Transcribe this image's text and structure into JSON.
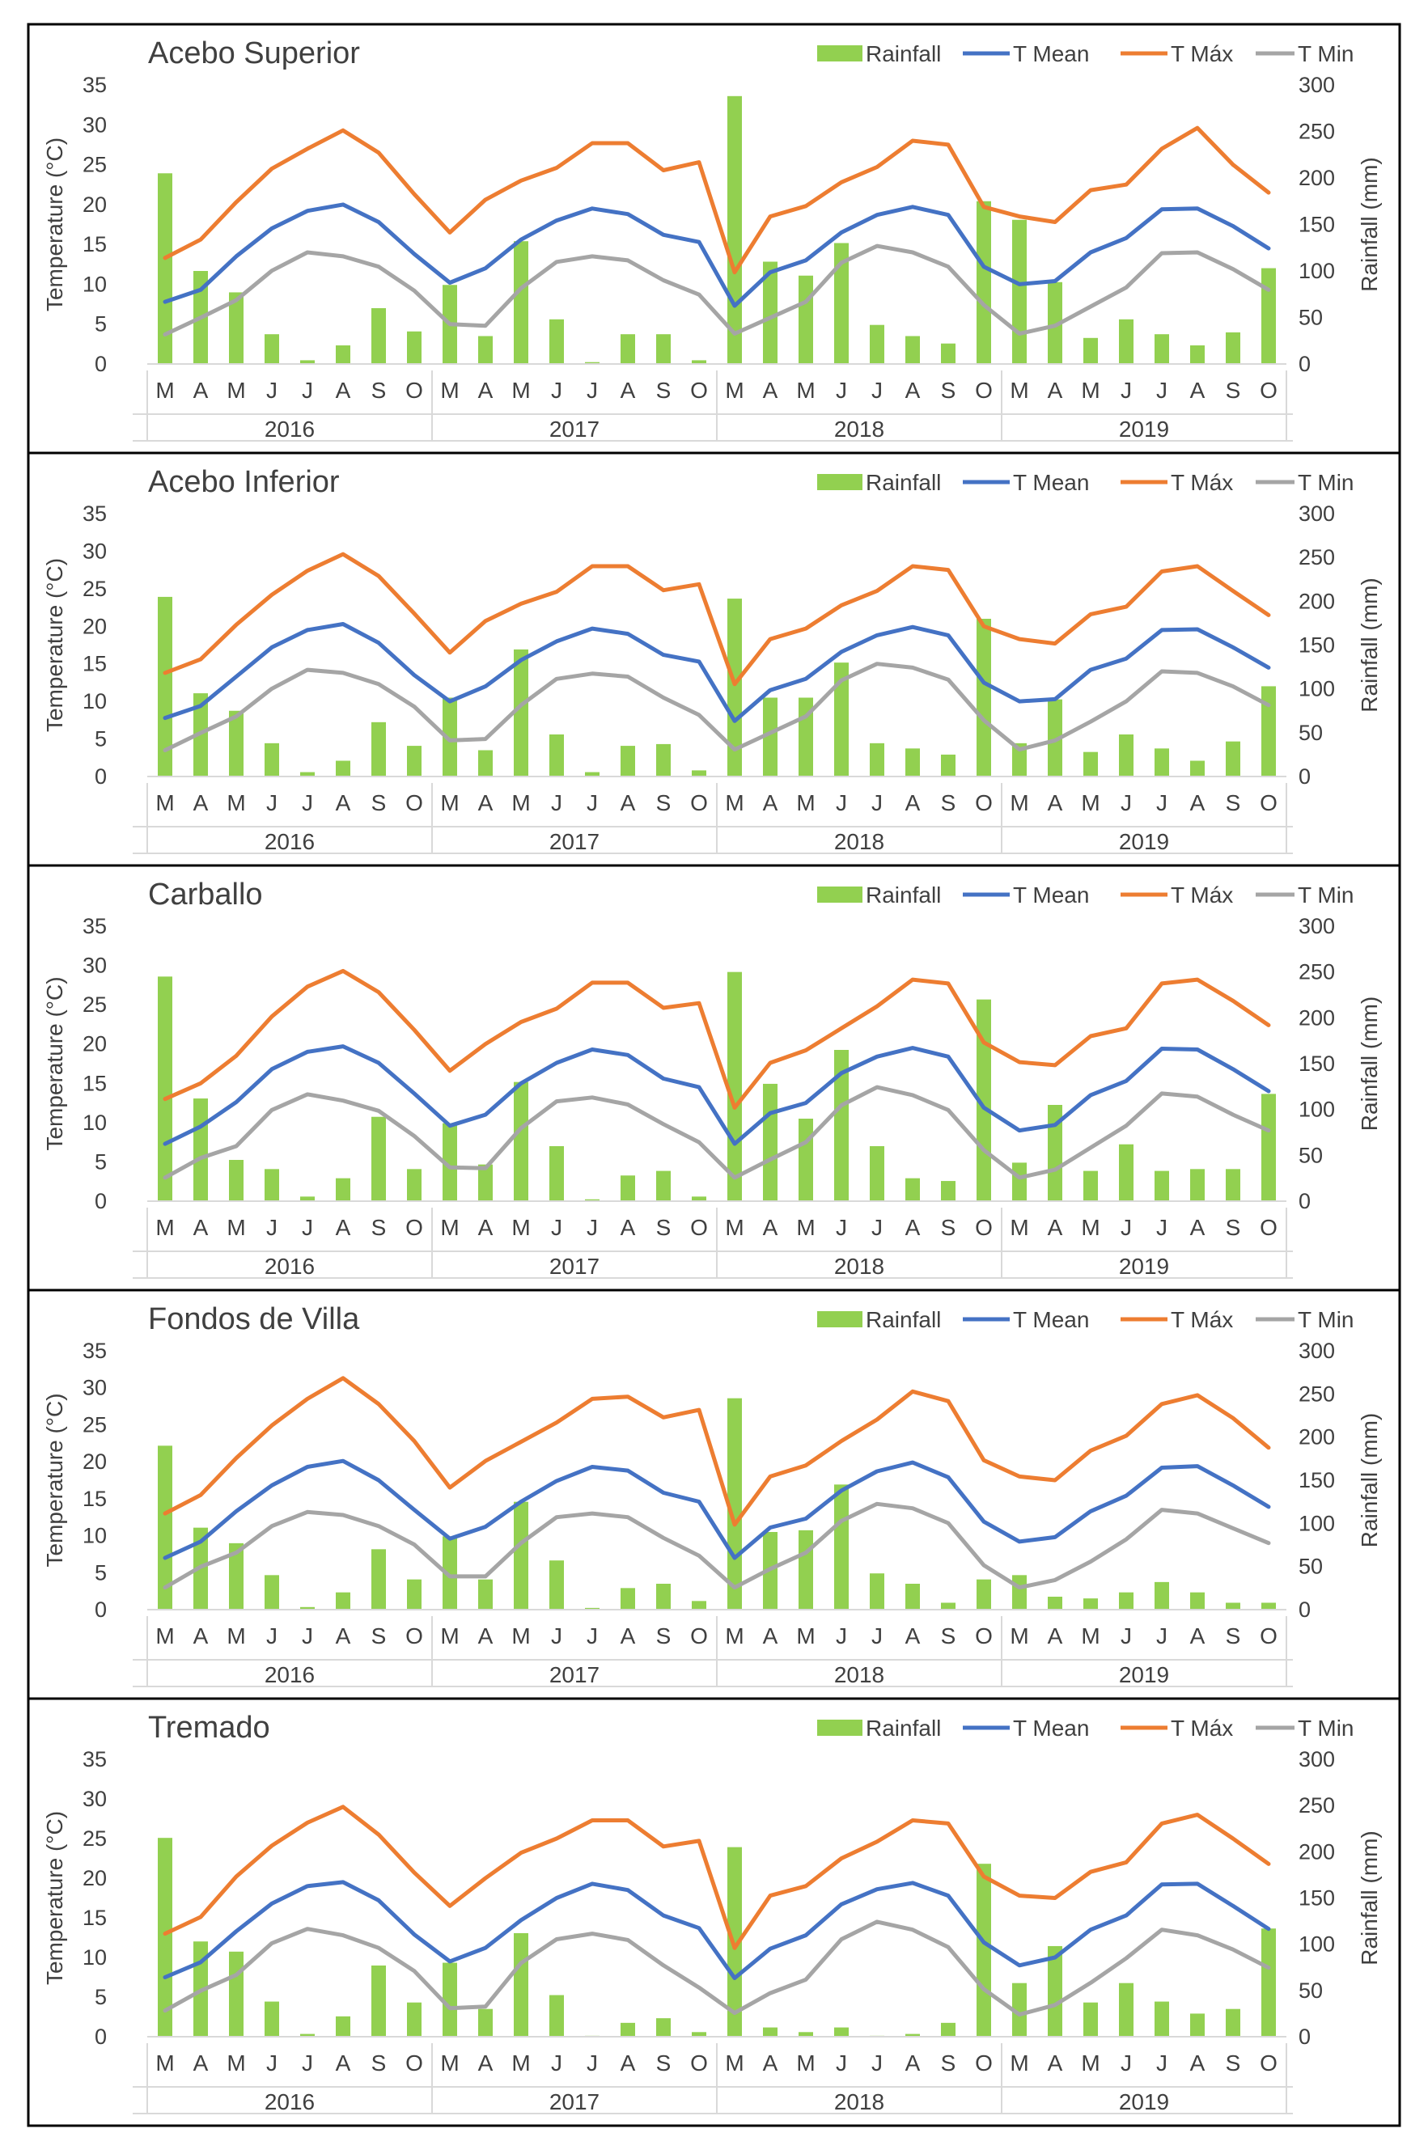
{
  "colors": {
    "rainfall": "#92D050",
    "t_mean": "#4472C4",
    "t_max": "#ED7D31",
    "t_min": "#A5A5A5",
    "frame": "#000000",
    "text": "#404040",
    "divider": "#D9D9D9"
  },
  "legend_labels": [
    "Rainfall",
    "T Mean",
    "T Máx",
    "T Min"
  ],
  "chart_data": [
    {
      "type": "bar-line",
      "title": "Acebo Superior",
      "ylabel": "Temperature (°C)",
      "y2label": "Rainfall (mm)",
      "ylim": [
        0,
        35
      ],
      "y2lim": [
        0,
        300
      ],
      "yticks": [
        "0",
        "5",
        "10",
        "15",
        "20",
        "25",
        "30",
        "35"
      ],
      "y2ticks": [
        "0",
        "50",
        "100",
        "150",
        "200",
        "250",
        "300"
      ],
      "legend": "top-right",
      "grid": false,
      "categories": [
        "M",
        "A",
        "M",
        "J",
        "J",
        "A",
        "S",
        "O",
        "M",
        "A",
        "M",
        "J",
        "J",
        "A",
        "S",
        "O",
        "M",
        "A",
        "M",
        "J",
        "J",
        "A",
        "S",
        "O",
        "M",
        "A",
        "M",
        "J",
        "J",
        "A",
        "S",
        "O"
      ],
      "years": [
        "2016",
        "2017",
        "2018",
        "2019"
      ],
      "series": [
        {
          "name": "Rainfall",
          "kind": "bar",
          "axis": "right",
          "values": [
            205,
            100,
            77,
            32,
            4,
            20,
            60,
            35,
            85,
            30,
            132,
            48,
            2,
            32,
            32,
            4,
            288,
            110,
            95,
            130,
            42,
            30,
            22,
            175,
            155,
            88,
            28,
            48,
            32,
            20,
            34,
            103
          ]
        },
        {
          "name": "T Mean",
          "kind": "line",
          "axis": "left",
          "values": [
            7.8,
            9.3,
            13.5,
            17.0,
            19.2,
            20.0,
            17.8,
            13.8,
            10.2,
            12.0,
            15.6,
            18.0,
            19.5,
            18.8,
            16.2,
            15.3,
            7.3,
            11.5,
            13.0,
            16.5,
            18.7,
            19.7,
            18.7,
            12.2,
            10.0,
            10.4,
            14.0,
            15.8,
            19.4,
            19.5,
            17.3,
            14.5
          ]
        },
        {
          "name": "T Máx",
          "kind": "line",
          "axis": "left",
          "values": [
            13.3,
            15.6,
            20.3,
            24.5,
            27.0,
            29.3,
            26.5,
            21.3,
            16.5,
            20.6,
            23.0,
            24.6,
            27.7,
            27.7,
            24.3,
            25.3,
            11.5,
            18.5,
            19.8,
            22.8,
            24.7,
            28.0,
            27.5,
            19.7,
            18.5,
            17.8,
            21.8,
            22.5,
            27.0,
            29.6,
            25.0,
            21.5
          ]
        },
        {
          "name": "T Min",
          "kind": "line",
          "axis": "left",
          "values": [
            3.7,
            5.8,
            8.0,
            11.7,
            14.0,
            13.5,
            12.2,
            9.2,
            5.0,
            4.8,
            9.5,
            12.8,
            13.5,
            13.0,
            10.5,
            8.7,
            3.8,
            5.8,
            7.8,
            12.7,
            14.8,
            14.0,
            12.2,
            7.4,
            3.8,
            4.8,
            7.2,
            9.6,
            13.9,
            14.0,
            11.9,
            9.3
          ]
        }
      ]
    },
    {
      "type": "bar-line",
      "title": "Acebo Inferior",
      "ylabel": "Temperature (°C)",
      "y2label": "Rainfall (mm)",
      "ylim": [
        0,
        35
      ],
      "y2lim": [
        0,
        300
      ],
      "yticks": [
        "0",
        "5",
        "10",
        "15",
        "20",
        "25",
        "30",
        "35"
      ],
      "y2ticks": [
        "0",
        "50",
        "100",
        "150",
        "200",
        "250",
        "300"
      ],
      "legend": "top-right",
      "grid": false,
      "categories": [
        "M",
        "A",
        "M",
        "J",
        "J",
        "A",
        "S",
        "O",
        "M",
        "A",
        "M",
        "J",
        "J",
        "A",
        "S",
        "O",
        "M",
        "A",
        "M",
        "J",
        "J",
        "A",
        "S",
        "O",
        "M",
        "A",
        "M",
        "J",
        "J",
        "A",
        "S",
        "O"
      ],
      "years": [
        "2016",
        "2017",
        "2018",
        "2019"
      ],
      "series": [
        {
          "name": "Rainfall",
          "kind": "bar",
          "axis": "right",
          "values": [
            205,
            95,
            75,
            38,
            5,
            18,
            62,
            35,
            90,
            30,
            145,
            48,
            5,
            35,
            37,
            7,
            203,
            90,
            90,
            130,
            38,
            32,
            25,
            180,
            38,
            88,
            28,
            48,
            32,
            18,
            40,
            103
          ]
        },
        {
          "name": "T Mean",
          "kind": "line",
          "axis": "left",
          "values": [
            7.8,
            9.4,
            13.3,
            17.2,
            19.5,
            20.3,
            17.8,
            13.5,
            10.0,
            12.0,
            15.5,
            18.0,
            19.7,
            19.0,
            16.2,
            15.3,
            7.4,
            11.5,
            13.0,
            16.6,
            18.8,
            19.9,
            18.8,
            12.5,
            10.0,
            10.3,
            14.2,
            15.7,
            19.5,
            19.6,
            17.2,
            14.5
          ]
        },
        {
          "name": "T Máx",
          "kind": "line",
          "axis": "left",
          "values": [
            13.8,
            15.6,
            20.2,
            24.2,
            27.4,
            29.6,
            26.7,
            21.7,
            16.5,
            20.7,
            23.0,
            24.6,
            28.0,
            28.0,
            24.8,
            25.6,
            12.3,
            18.3,
            19.7,
            22.8,
            24.7,
            28.0,
            27.5,
            20.0,
            18.3,
            17.7,
            21.6,
            22.6,
            27.3,
            28.0,
            24.7,
            21.5
          ]
        },
        {
          "name": "T Min",
          "kind": "line",
          "axis": "left",
          "values": [
            3.5,
            5.8,
            8.0,
            11.7,
            14.2,
            13.8,
            12.3,
            9.3,
            4.8,
            5.0,
            9.5,
            13.0,
            13.7,
            13.3,
            10.5,
            8.2,
            3.6,
            5.8,
            8.0,
            12.8,
            15.0,
            14.5,
            12.9,
            7.5,
            3.6,
            4.8,
            7.3,
            10.0,
            14.0,
            13.8,
            12.0,
            9.5
          ]
        }
      ]
    },
    {
      "type": "bar-line",
      "title": "Carballo",
      "ylabel": "Temperature (°C)",
      "y2label": "Rainfall (mm)",
      "ylim": [
        0,
        35
      ],
      "y2lim": [
        0,
        300
      ],
      "yticks": [
        "0",
        "5",
        "10",
        "15",
        "20",
        "25",
        "30",
        "35"
      ],
      "y2ticks": [
        "0",
        "50",
        "100",
        "150",
        "200",
        "250",
        "300"
      ],
      "legend": "top-right",
      "grid": false,
      "categories": [
        "M",
        "A",
        "M",
        "J",
        "J",
        "A",
        "S",
        "O",
        "M",
        "A",
        "M",
        "J",
        "J",
        "A",
        "S",
        "O",
        "M",
        "A",
        "M",
        "J",
        "J",
        "A",
        "S",
        "O",
        "M",
        "A",
        "M",
        "J",
        "J",
        "A",
        "S",
        "O"
      ],
      "years": [
        "2016",
        "2017",
        "2018",
        "2019"
      ],
      "series": [
        {
          "name": "Rainfall",
          "kind": "bar",
          "axis": "right",
          "values": [
            245,
            112,
            45,
            35,
            5,
            25,
            92,
            35,
            85,
            40,
            130,
            60,
            2,
            28,
            33,
            5,
            250,
            128,
            90,
            165,
            60,
            25,
            22,
            220,
            42,
            105,
            33,
            62,
            33,
            35,
            35,
            117
          ]
        },
        {
          "name": "T Mean",
          "kind": "line",
          "axis": "left",
          "values": [
            7.3,
            9.5,
            12.6,
            16.8,
            19.0,
            19.7,
            17.6,
            13.7,
            9.6,
            11.0,
            15.0,
            17.6,
            19.3,
            18.6,
            15.6,
            14.5,
            7.3,
            11.2,
            12.5,
            16.3,
            18.4,
            19.5,
            18.4,
            11.9,
            9.0,
            9.7,
            13.5,
            15.3,
            19.4,
            19.3,
            16.8,
            14.0
          ]
        },
        {
          "name": "T Máx",
          "kind": "line",
          "axis": "left",
          "values": [
            13.0,
            15.0,
            18.5,
            23.5,
            27.3,
            29.3,
            26.6,
            21.8,
            16.6,
            20.0,
            22.8,
            24.5,
            27.8,
            27.8,
            24.6,
            25.2,
            11.9,
            17.6,
            19.2,
            22.0,
            24.8,
            28.2,
            27.7,
            20.2,
            17.7,
            17.3,
            21.0,
            22.0,
            27.7,
            28.2,
            25.5,
            22.4
          ]
        },
        {
          "name": "T Min",
          "kind": "line",
          "axis": "left",
          "values": [
            3.0,
            5.5,
            7.0,
            11.6,
            13.6,
            12.8,
            11.5,
            8.3,
            4.3,
            4.2,
            9.3,
            12.7,
            13.2,
            12.3,
            9.8,
            7.5,
            3.0,
            5.3,
            7.5,
            12.2,
            14.5,
            13.5,
            11.6,
            6.5,
            3.0,
            4.0,
            6.8,
            9.6,
            13.7,
            13.3,
            11.0,
            9.0
          ]
        }
      ]
    },
    {
      "type": "bar-line",
      "title": "Fondos de Villa",
      "ylabel": "Temperature (°C)",
      "y2label": "Rainfall (mm)",
      "ylim": [
        0,
        35
      ],
      "y2lim": [
        0,
        300
      ],
      "yticks": [
        "0",
        "5",
        "10",
        "15",
        "20",
        "25",
        "30",
        "35"
      ],
      "y2ticks": [
        "0",
        "50",
        "100",
        "150",
        "200",
        "250",
        "300"
      ],
      "legend": "top-right",
      "grid": false,
      "categories": [
        "M",
        "A",
        "M",
        "J",
        "J",
        "A",
        "S",
        "O",
        "M",
        "A",
        "M",
        "J",
        "J",
        "A",
        "S",
        "O",
        "M",
        "A",
        "M",
        "J",
        "J",
        "A",
        "S",
        "O",
        "M",
        "A",
        "M",
        "J",
        "J",
        "A",
        "S",
        "O"
      ],
      "years": [
        "2016",
        "2017",
        "2018",
        "2019"
      ],
      "series": [
        {
          "name": "Rainfall",
          "kind": "bar",
          "axis": "right",
          "values": [
            190,
            95,
            77,
            40,
            3,
            20,
            70,
            35,
            85,
            35,
            125,
            57,
            2,
            25,
            30,
            10,
            245,
            90,
            92,
            145,
            42,
            30,
            8,
            35,
            40,
            15,
            13,
            20,
            32,
            20,
            8,
            8
          ]
        },
        {
          "name": "T Mean",
          "kind": "line",
          "axis": "left",
          "values": [
            7.0,
            9.2,
            13.3,
            16.8,
            19.3,
            20.1,
            17.5,
            13.5,
            9.6,
            11.2,
            14.6,
            17.4,
            19.3,
            18.8,
            15.8,
            14.6,
            7.0,
            11.1,
            12.3,
            16.1,
            18.7,
            19.9,
            17.9,
            11.9,
            9.2,
            9.8,
            13.3,
            15.4,
            19.2,
            19.4,
            16.8,
            13.9
          ]
        },
        {
          "name": "T Máx",
          "kind": "line",
          "axis": "left",
          "values": [
            13.0,
            15.5,
            20.5,
            24.9,
            28.5,
            31.3,
            27.8,
            22.8,
            16.5,
            20.1,
            22.7,
            25.3,
            28.5,
            28.8,
            26.0,
            27.0,
            11.5,
            18.0,
            19.5,
            22.8,
            25.7,
            29.5,
            28.2,
            20.2,
            18.0,
            17.5,
            21.5,
            23.5,
            27.8,
            29.0,
            25.9,
            21.9
          ]
        },
        {
          "name": "T Min",
          "kind": "line",
          "axis": "left",
          "values": [
            3.0,
            5.8,
            7.7,
            11.3,
            13.2,
            12.8,
            11.3,
            8.8,
            4.5,
            4.5,
            9.0,
            12.5,
            13.0,
            12.5,
            9.7,
            7.3,
            3.0,
            5.5,
            7.7,
            12.0,
            14.3,
            13.7,
            11.7,
            6.0,
            3.0,
            4.0,
            6.5,
            9.5,
            13.5,
            13.0,
            11.0,
            9.0
          ]
        }
      ]
    },
    {
      "type": "bar-line",
      "title": "Tremado",
      "ylabel": "Temperature (°C)",
      "y2label": "Rainfall (mm)",
      "ylim": [
        0,
        35
      ],
      "y2lim": [
        0,
        300
      ],
      "yticks": [
        "0",
        "5",
        "10",
        "15",
        "20",
        "25",
        "30",
        "35"
      ],
      "y2ticks": [
        "0",
        "50",
        "100",
        "150",
        "200",
        "250",
        "300"
      ],
      "legend": "top-right",
      "grid": false,
      "categories": [
        "M",
        "A",
        "M",
        "J",
        "J",
        "A",
        "S",
        "O",
        "M",
        "A",
        "M",
        "J",
        "J",
        "A",
        "S",
        "O",
        "M",
        "A",
        "M",
        "J",
        "J",
        "A",
        "S",
        "O",
        "M",
        "A",
        "M",
        "J",
        "J",
        "A",
        "S",
        "O"
      ],
      "years": [
        "2016",
        "2017",
        "2018",
        "2019"
      ],
      "series": [
        {
          "name": "Rainfall",
          "kind": "bar",
          "axis": "right",
          "values": [
            215,
            103,
            92,
            38,
            3,
            22,
            77,
            37,
            80,
            30,
            112,
            45,
            1,
            15,
            20,
            5,
            205,
            10,
            5,
            10,
            1,
            3,
            15,
            187,
            58,
            98,
            37,
            58,
            38,
            25,
            30,
            117
          ]
        },
        {
          "name": "T Mean",
          "kind": "line",
          "axis": "left",
          "values": [
            7.5,
            9.4,
            13.3,
            16.8,
            19.0,
            19.5,
            17.2,
            12.9,
            9.5,
            11.2,
            14.7,
            17.5,
            19.3,
            18.5,
            15.3,
            13.7,
            7.4,
            11.1,
            12.8,
            16.7,
            18.6,
            19.4,
            17.8,
            11.9,
            9.0,
            10.0,
            13.5,
            15.3,
            19.2,
            19.3,
            16.5,
            13.6
          ]
        },
        {
          "name": "T Máx",
          "kind": "line",
          "axis": "left",
          "values": [
            13.0,
            15.1,
            20.2,
            24.1,
            27.0,
            29.0,
            25.5,
            20.7,
            16.5,
            20.0,
            23.2,
            25.0,
            27.3,
            27.3,
            24.0,
            24.7,
            11.2,
            17.8,
            19.0,
            22.5,
            24.6,
            27.3,
            26.9,
            20.2,
            17.8,
            17.5,
            20.8,
            22.0,
            26.9,
            28.0,
            25.0,
            21.8
          ]
        },
        {
          "name": "T Min",
          "kind": "line",
          "axis": "left",
          "values": [
            3.3,
            5.8,
            7.8,
            11.8,
            13.6,
            12.8,
            11.2,
            8.3,
            3.6,
            3.8,
            9.3,
            12.3,
            13.0,
            12.2,
            9.0,
            6.2,
            3.0,
            5.5,
            7.2,
            12.3,
            14.5,
            13.5,
            11.3,
            6.0,
            2.8,
            4.0,
            6.8,
            9.9,
            13.5,
            12.8,
            11.0,
            8.7
          ]
        }
      ]
    }
  ]
}
